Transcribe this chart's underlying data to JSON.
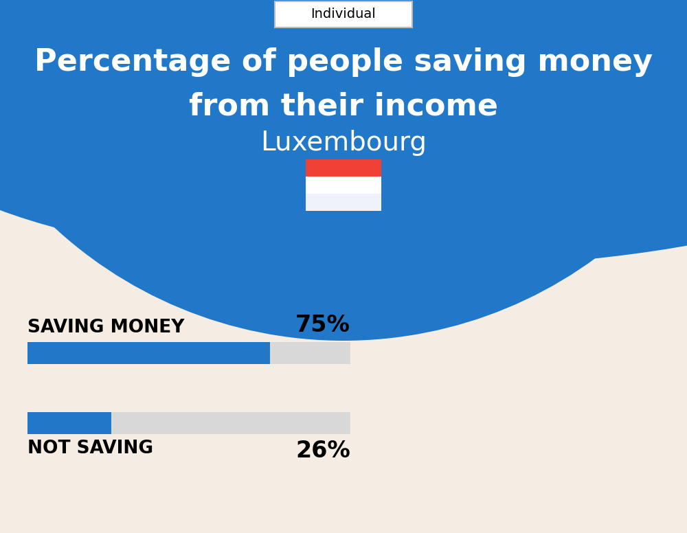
{
  "title_line1": "Percentage of people saving money",
  "title_line2": "from their income",
  "country": "Luxembourg",
  "tab_label": "Individual",
  "bg_color": "#F5EDE3",
  "header_color": "#2178C8",
  "bar_fill_color": "#2178C8",
  "bar_bg_color": "#D8D8D8",
  "categories": [
    "SAVING MONEY",
    "NOT SAVING"
  ],
  "values": [
    75,
    26
  ],
  "title_fontsize": 32,
  "country_fontsize": 28,
  "tab_fontsize": 14,
  "bar_label_fontsize": 19,
  "pct_fontsize": 24,
  "flag_red": "#EF4135",
  "flag_white": "#FFFFFF",
  "flag_blue": "#EFF2FB"
}
